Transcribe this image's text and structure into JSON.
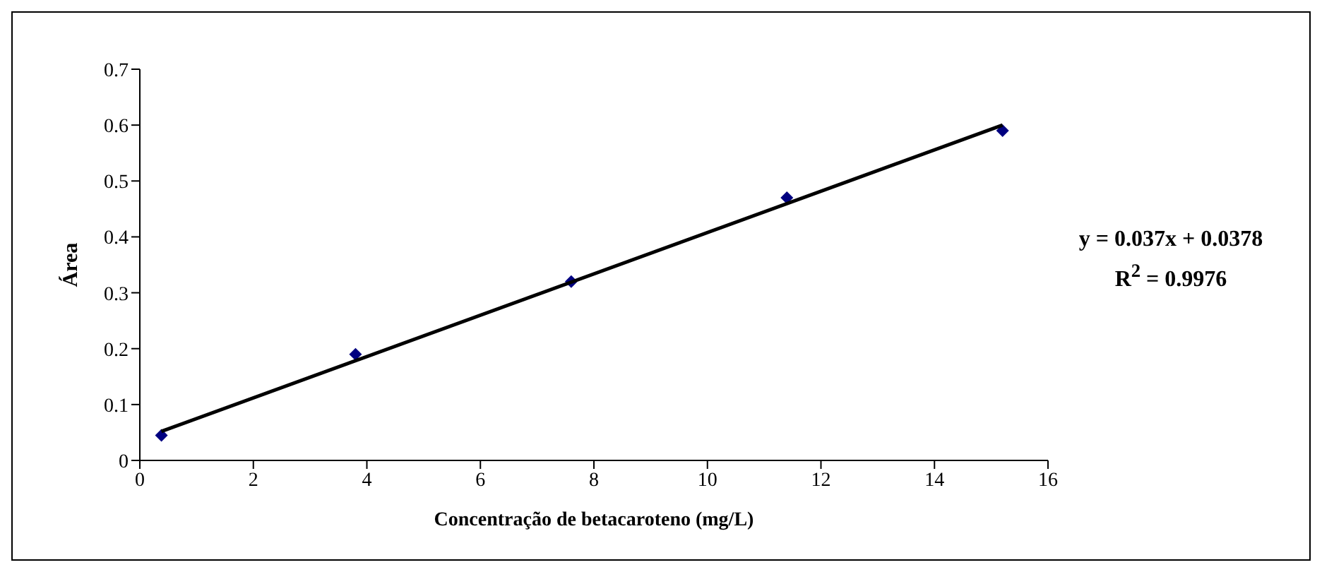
{
  "chart_data": {
    "type": "scatter",
    "xlabel": "Concentração de betacaroteno (mg/L)",
    "ylabel": "Área",
    "marker": "diamond",
    "grid": false,
    "legend": false,
    "xlim": [
      0,
      16
    ],
    "xticks": [
      0,
      2,
      4,
      6,
      8,
      10,
      12,
      14,
      16
    ],
    "ylim": [
      0,
      0.7
    ],
    "yticks": [
      0,
      0.1,
      0.2,
      0.3,
      0.4,
      0.5,
      0.6,
      0.7
    ],
    "series": [
      {
        "type": "scatter",
        "color": "#000080",
        "x": [
          0.38,
          3.8,
          7.6,
          11.4,
          15.2
        ],
        "values": [
          0.045,
          0.19,
          0.32,
          0.47,
          0.59
        ]
      },
      {
        "type": "line",
        "color": "#000000",
        "marker": "none",
        "line_style": "solid",
        "x": [
          0.38,
          15.2
        ],
        "values": [
          0.052,
          0.6
        ]
      }
    ],
    "annotations": [
      "y = 0.037x + 0.0378",
      "R$^{2}$ = 0.9976"
    ]
  }
}
